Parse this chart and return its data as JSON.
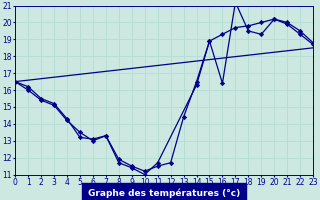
{
  "xlabel": "Graphe des températures (°c)",
  "bg_color": "#cce8e0",
  "line_color": "#00008b",
  "grid_color": "#b8ddd5",
  "xlim": [
    0,
    23
  ],
  "ylim": [
    11,
    21
  ],
  "xticks": [
    0,
    1,
    2,
    3,
    4,
    5,
    6,
    7,
    8,
    9,
    10,
    11,
    12,
    13,
    14,
    15,
    16,
    17,
    18,
    19,
    20,
    21,
    22,
    23
  ],
  "yticks": [
    11,
    12,
    13,
    14,
    15,
    16,
    17,
    18,
    19,
    20,
    21
  ],
  "series1_x": [
    0,
    1,
    2,
    3,
    4,
    5,
    6,
    7,
    8,
    9,
    10,
    11,
    14,
    15,
    16,
    17,
    18,
    19,
    20,
    21,
    22,
    23
  ],
  "series1_y": [
    16.5,
    16.2,
    15.5,
    15.2,
    14.3,
    13.2,
    13.1,
    13.3,
    11.7,
    11.4,
    11.0,
    11.7,
    16.3,
    18.9,
    16.4,
    21.2,
    19.5,
    19.3,
    20.2,
    20.0,
    19.5,
    18.8
  ],
  "series2_x": [
    0,
    1,
    2,
    3,
    4,
    5,
    6,
    7,
    8,
    9,
    10,
    11,
    12,
    13,
    14,
    15,
    16,
    17,
    18,
    19,
    20,
    21,
    22,
    23
  ],
  "series2_y": [
    16.5,
    16.0,
    15.4,
    15.1,
    14.2,
    13.5,
    13.0,
    13.3,
    11.9,
    11.5,
    11.2,
    11.5,
    11.7,
    14.4,
    16.5,
    18.9,
    19.3,
    19.7,
    19.8,
    20.0,
    20.2,
    19.9,
    19.3,
    18.7
  ],
  "trend_x": [
    0,
    23
  ],
  "trend_y": [
    16.5,
    18.5
  ],
  "tick_fontsize": 5.5,
  "label_fontsize": 6.5
}
